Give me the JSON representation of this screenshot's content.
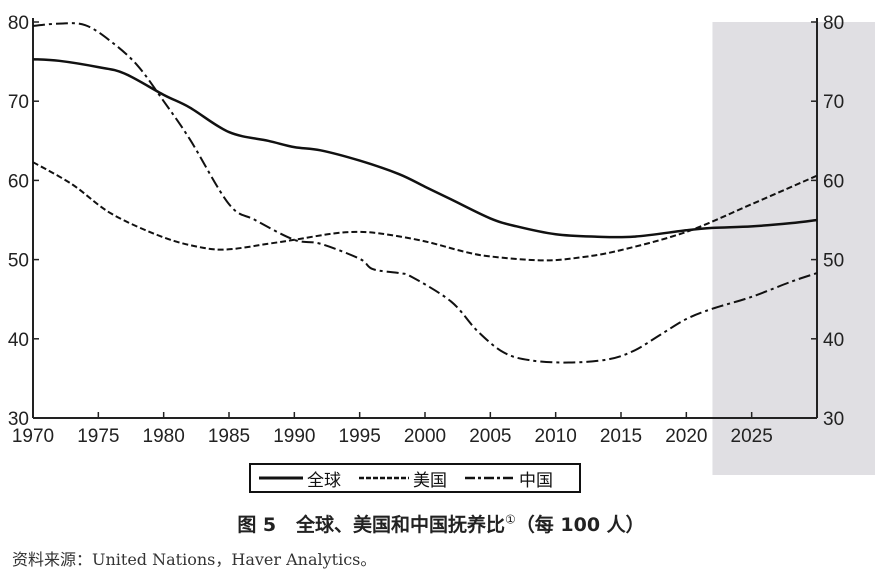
{
  "chart_data": {
    "type": "line",
    "xlim": [
      1970,
      2030
    ],
    "ylim": [
      30,
      80
    ],
    "x_ticks": [
      "1970",
      "1975",
      "1980",
      "1985",
      "1990",
      "1995",
      "2000",
      "2005",
      "2010",
      "2015",
      "2020",
      "2025"
    ],
    "y_ticks": [
      "30",
      "40",
      "50",
      "60",
      "70",
      "80"
    ],
    "y_axis_sides": [
      "left",
      "right"
    ],
    "shaded_region": {
      "x_from": 2022,
      "x_to": 2030,
      "color": "#e0dfe3"
    },
    "grid": false,
    "legend_position": "bottom",
    "series": [
      {
        "name": "全球",
        "style": "solid",
        "x": [
          1970,
          1972,
          1975,
          1977,
          1980,
          1982,
          1985,
          1988,
          1990,
          1992,
          1995,
          1998,
          2000,
          2002,
          2005,
          2007,
          2010,
          2013,
          2016,
          2020,
          2022,
          2025,
          2028,
          2030
        ],
        "values": [
          75.3,
          75.1,
          74.3,
          73.5,
          70.8,
          69.2,
          66.1,
          65.0,
          64.2,
          63.8,
          62.5,
          60.8,
          59.2,
          57.6,
          55.2,
          54.2,
          53.2,
          52.9,
          52.9,
          53.7,
          54.0,
          54.2,
          54.6,
          55.0
        ]
      },
      {
        "name": "美国",
        "style": "dashed",
        "x": [
          1970,
          1973,
          1976,
          1980,
          1983,
          1985,
          1988,
          1990,
          1993,
          1995,
          1997,
          2000,
          2003,
          2005,
          2009,
          2012,
          2015,
          2020,
          2025,
          2030
        ],
        "values": [
          62.3,
          59.5,
          55.8,
          52.8,
          51.5,
          51.3,
          52.0,
          52.5,
          53.3,
          53.5,
          53.2,
          52.3,
          51.0,
          50.4,
          49.9,
          50.3,
          51.2,
          53.5,
          57.0,
          60.6
        ]
      },
      {
        "name": "中国",
        "style": "dash-dot",
        "x": [
          1970,
          1972,
          1974,
          1976,
          1978,
          1980,
          1982,
          1985,
          1987,
          1990,
          1992,
          1995,
          1996,
          1998,
          1999,
          2002,
          2004,
          2006,
          2008,
          2011,
          2014,
          2016,
          2018,
          2020,
          2022,
          2025,
          2028,
          2030
        ],
        "values": [
          79.5,
          79.8,
          79.6,
          77.5,
          74.5,
          70.0,
          65.2,
          57.0,
          55.0,
          52.5,
          52.0,
          50.1,
          48.8,
          48.3,
          47.8,
          44.7,
          41.0,
          38.3,
          37.3,
          37.0,
          37.4,
          38.5,
          40.5,
          42.5,
          43.8,
          45.3,
          47.2,
          48.3
        ]
      }
    ],
    "caption": {
      "prefix": "图 5",
      "title": "全球、美国和中国抚养比",
      "note": "①",
      "unit": "（每 100 人）"
    },
    "source": "资料来源：United Nations，Haver Analytics。"
  }
}
